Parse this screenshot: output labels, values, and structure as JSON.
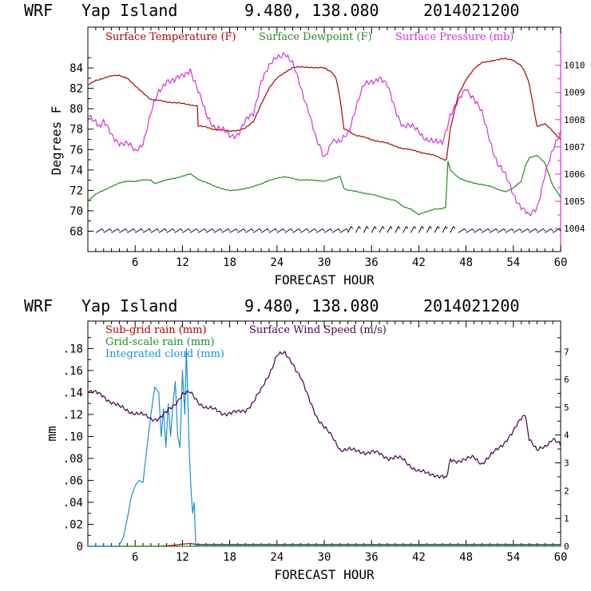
{
  "chart_data": [
    {
      "type": "line",
      "header": {
        "model": "WRF",
        "station": "Yap Island",
        "coords": "9.480, 138.080",
        "init": "2014021200"
      },
      "xlabel": "FORECAST HOUR",
      "ylabel": "Degrees F",
      "x_ticks": [
        "6",
        "12",
        "18",
        "24",
        "30",
        "36",
        "42",
        "48",
        "54",
        "60"
      ],
      "xlim": [
        0,
        60
      ],
      "ylim": [
        66,
        88
      ],
      "y_ticks": [
        "68",
        "70",
        "72",
        "74",
        "76",
        "78",
        "80",
        "82",
        "84"
      ],
      "y2lim": [
        1003.15,
        1011.4
      ],
      "y2_ticks": [
        "1004",
        "1005",
        "1006",
        "1007",
        "1008",
        "1009",
        "1010"
      ],
      "series": [
        {
          "name": "Surface Temperature (F)",
          "color": "#b00000",
          "axis": "left",
          "x": [
            0,
            1,
            2,
            3,
            4,
            5,
            6,
            7,
            8,
            9,
            10,
            11,
            12,
            13,
            13.9,
            14,
            15,
            16,
            17,
            18,
            19,
            20,
            21,
            22,
            23,
            24,
            25,
            26,
            27,
            28,
            29,
            30,
            31,
            31.5,
            32,
            32.5,
            33,
            34,
            36,
            38,
            40,
            42,
            44,
            45,
            45.5,
            46,
            47,
            48,
            49,
            50,
            51,
            52,
            53,
            54,
            55,
            55.5,
            56,
            57,
            58,
            59,
            60
          ],
          "values": [
            82.3,
            82.8,
            83.0,
            83.2,
            83.3,
            83.0,
            82.2,
            81.6,
            80.9,
            80.8,
            80.7,
            80.6,
            80.5,
            80.4,
            80.3,
            78.3,
            78.2,
            78.0,
            77.9,
            77.8,
            77.9,
            78.1,
            78.7,
            80.5,
            82.0,
            83.0,
            83.6,
            84.0,
            84.1,
            84.1,
            84.0,
            84.0,
            83.6,
            83.0,
            81.0,
            78.0,
            77.9,
            77.4,
            77.0,
            76.6,
            76.1,
            75.8,
            75.4,
            75.1,
            75.0,
            78.0,
            81.3,
            82.9,
            83.9,
            84.5,
            84.7,
            84.8,
            84.9,
            84.8,
            84.2,
            83.5,
            82.5,
            78.3,
            78.5,
            77.8,
            77.0
          ]
        },
        {
          "name": "Surface Dewpoint (F)",
          "color": "#228b22",
          "axis": "left",
          "x": [
            0,
            1,
            2,
            3,
            4,
            5,
            6,
            7,
            8,
            8.5,
            9,
            10,
            11,
            12,
            13,
            14,
            15,
            16,
            17,
            18,
            19,
            20,
            21,
            22,
            23,
            24,
            25,
            26,
            27,
            28,
            29,
            30,
            31,
            32,
            32.5,
            33,
            34,
            36,
            38,
            39,
            40,
            41,
            42,
            43,
            44,
            45,
            45.4,
            45.7,
            46,
            47,
            48,
            49,
            50,
            51,
            52,
            53,
            54,
            55,
            55.5,
            56,
            57,
            58,
            59,
            60
          ],
          "values": [
            71.0,
            71.6,
            72.0,
            72.4,
            72.7,
            72.9,
            72.9,
            73.0,
            73.0,
            72.7,
            72.8,
            73.0,
            73.2,
            73.4,
            73.6,
            73.1,
            72.8,
            72.4,
            72.2,
            72.0,
            72.0,
            72.2,
            72.4,
            72.6,
            73.0,
            73.2,
            73.3,
            73.2,
            73.0,
            73.0,
            73.0,
            72.9,
            73.1,
            73.4,
            72.2,
            72.0,
            71.9,
            71.6,
            71.2,
            71.0,
            70.4,
            70.2,
            69.6,
            69.9,
            70.2,
            70.2,
            70.3,
            74.8,
            74.0,
            73.3,
            72.9,
            72.7,
            72.6,
            72.4,
            72.1,
            71.9,
            72.2,
            72.9,
            74.4,
            75.2,
            75.4,
            74.7,
            72.5,
            71.3
          ]
        },
        {
          "name": "Surface Pressure (mb)",
          "color": "#d633d6",
          "axis": "right",
          "x": [
            0,
            1,
            1.5,
            2,
            3,
            4,
            5,
            6,
            7,
            8,
            9,
            10,
            11,
            12,
            13,
            14,
            15,
            16,
            17,
            18,
            19,
            20,
            21,
            22,
            23,
            24,
            25,
            26,
            27,
            28,
            29,
            30,
            31,
            32,
            33,
            34,
            35,
            36,
            37,
            38,
            39,
            40,
            41,
            42,
            43,
            44,
            45,
            46,
            47,
            48,
            49,
            50,
            51,
            52,
            53,
            54,
            55,
            56,
            57,
            58,
            59,
            60
          ],
          "values": [
            1008.1,
            1008.0,
            1007.8,
            1007.9,
            1007.4,
            1007.2,
            1007.1,
            1006.8,
            1007.2,
            1008.2,
            1009.0,
            1009.5,
            1009.4,
            1009.6,
            1009.9,
            1009.0,
            1008.2,
            1007.8,
            1007.6,
            1007.4,
            1007.5,
            1007.9,
            1008.2,
            1009.5,
            1009.9,
            1010.3,
            1010.5,
            1010.0,
            1009.2,
            1008.4,
            1007.2,
            1006.6,
            1007.3,
            1007.1,
            1007.5,
            1008.5,
            1009.2,
            1009.4,
            1009.6,
            1009.2,
            1008.4,
            1007.8,
            1007.7,
            1007.6,
            1007.3,
            1007.1,
            1007.2,
            1008.2,
            1008.6,
            1009.2,
            1008.8,
            1008.2,
            1007.3,
            1006.4,
            1005.9,
            1005.3,
            1004.8,
            1004.4,
            1004.8,
            1006.0,
            1006.8,
            1007.6
          ]
        }
      ],
      "wind_barbs": "hourly wind barbs along the 68 F line"
    },
    {
      "type": "line",
      "header": {
        "model": "WRF",
        "station": "Yap Island",
        "coords": "9.480, 138.080",
        "init": "2014021200"
      },
      "xlabel": "FORECAST HOUR",
      "ylabel": "mm",
      "x_ticks": [
        "6",
        "12",
        "18",
        "24",
        "30",
        "36",
        "42",
        "48",
        "54",
        "60"
      ],
      "xlim": [
        0,
        60
      ],
      "ylim": [
        0,
        0.205
      ],
      "y_ticks": [
        "0",
        ".02",
        ".04",
        ".06",
        ".08",
        ".10",
        ".12",
        ".14",
        ".16",
        ".18"
      ],
      "y2lim": [
        0,
        8.1
      ],
      "y2_ticks": [
        "0",
        "1",
        "2",
        "3",
        "4",
        "5",
        "6",
        "7"
      ],
      "series": [
        {
          "name": "Sub-grid rain (mm)",
          "color": "#b00000",
          "axis": "left",
          "x": [
            0,
            9,
            10,
            11,
            12,
            13,
            14,
            60
          ],
          "values": [
            0,
            0,
            0.0005,
            0.001,
            0.002,
            0.0025,
            0.0015,
            0.0015
          ]
        },
        {
          "name": "Grid-scale rain (mm)",
          "color": "#228b22",
          "axis": "left",
          "x": [
            0,
            13.5,
            14,
            60
          ],
          "values": [
            0,
            0,
            0.001,
            0.001
          ]
        },
        {
          "name": "Integrated cloud (mm)",
          "color": "#1e8fd6",
          "axis": "left",
          "x": [
            0,
            3.9,
            4.5,
            5,
            5.5,
            6,
            6.5,
            7,
            7.5,
            8,
            8.5,
            9,
            9.3,
            9.6,
            9.9,
            10.2,
            10.5,
            10.8,
            11.1,
            11.4,
            11.7,
            12,
            12.3,
            12.5,
            12.7,
            12.9,
            13.1,
            13.3,
            13.5,
            13.7,
            14,
            60
          ],
          "values": [
            0,
            0,
            0.008,
            0.025,
            0.045,
            0.055,
            0.06,
            0.058,
            0.09,
            0.12,
            0.145,
            0.14,
            0.1,
            0.125,
            0.09,
            0.13,
            0.1,
            0.13,
            0.15,
            0.1,
            0.09,
            0.16,
            0.12,
            0.18,
            0.13,
            0.08,
            0.05,
            0.03,
            0.04,
            0.0,
            0.0,
            0.0
          ]
        },
        {
          "name": "Surface Wind Speed (m/s)",
          "color": "#4b0050",
          "axis": "right",
          "x": [
            0,
            1,
            2,
            3,
            4,
            5,
            6,
            7,
            8,
            9,
            10,
            11,
            12,
            13,
            14,
            15,
            16,
            17,
            18,
            19,
            20,
            21,
            22,
            23,
            24,
            25,
            26,
            27,
            28,
            29,
            30,
            31,
            32,
            33,
            34,
            35,
            36,
            37,
            38,
            39,
            40,
            41,
            42,
            43,
            44,
            45,
            45.5,
            46,
            47,
            48,
            49,
            50,
            51,
            52,
            53,
            54,
            55,
            55.5,
            56,
            57,
            58,
            59,
            60
          ],
          "values": [
            5.6,
            5.5,
            5.4,
            5.2,
            5.0,
            4.9,
            4.8,
            4.7,
            4.6,
            4.6,
            4.8,
            5.1,
            5.5,
            5.5,
            5.2,
            5.0,
            4.9,
            4.8,
            4.8,
            4.8,
            4.9,
            5.2,
            5.6,
            6.2,
            6.9,
            6.9,
            6.6,
            6.1,
            5.3,
            4.7,
            4.3,
            3.9,
            3.5,
            3.5,
            3.4,
            3.4,
            3.4,
            3.3,
            3.2,
            3.2,
            3.1,
            2.9,
            2.7,
            2.6,
            2.6,
            2.5,
            2.4,
            3.1,
            3.1,
            3.1,
            3.2,
            3.0,
            3.2,
            3.5,
            3.8,
            4.1,
            4.6,
            4.8,
            3.9,
            3.4,
            3.6,
            3.9,
            3.6
          ]
        }
      ]
    }
  ]
}
